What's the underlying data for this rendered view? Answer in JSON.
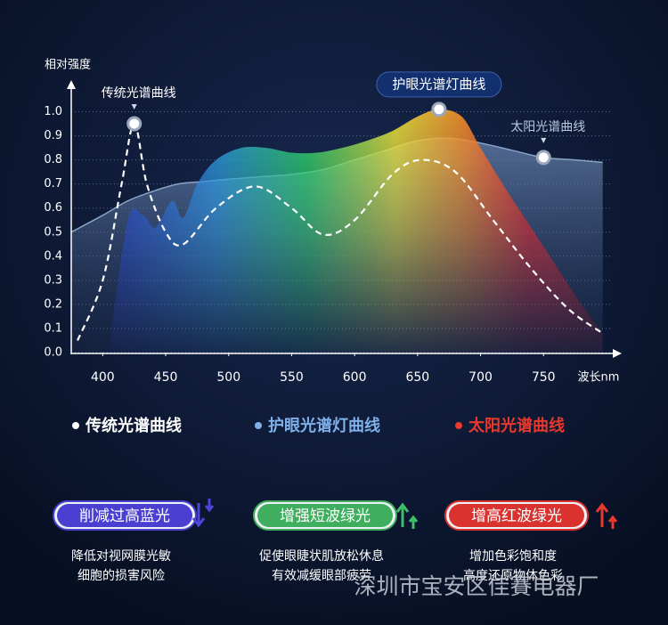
{
  "chart_data": {
    "type": "area",
    "y_label": "相对强度",
    "x_label": "波长nm",
    "xlim": [
      375,
      805
    ],
    "xticks": [
      400,
      450,
      500,
      550,
      600,
      650,
      700,
      750
    ],
    "ylim": [
      0,
      1.05
    ],
    "yticks": [
      {
        "value": 0,
        "label": "0.0"
      },
      0.1,
      0.2,
      0.3,
      0.4,
      0.5,
      0.6,
      0.7,
      0.8,
      0.9,
      {
        "value": 1,
        "label": "1.0"
      }
    ],
    "grid": true,
    "series": [
      {
        "name": "太阳光谱曲线",
        "color": "#e8392f",
        "style": "area",
        "x": [
          375,
          400,
          420,
          440,
          460,
          480,
          500,
          525,
          550,
          575,
          600,
          625,
          650,
          675,
          700,
          725,
          750,
          775,
          797
        ],
        "values": [
          0.5,
          0.57,
          0.63,
          0.67,
          0.7,
          0.71,
          0.72,
          0.73,
          0.74,
          0.76,
          0.8,
          0.84,
          0.88,
          0.89,
          0.87,
          0.84,
          0.81,
          0.8,
          0.79
        ],
        "marker": 16
      },
      {
        "name": "护眼光谱灯曲线",
        "color": "#7fb0ea",
        "style": "rainbow",
        "x": [
          405,
          420,
          432,
          442,
          455,
          464,
          475,
          490,
          510,
          530,
          550,
          570,
          590,
          610,
          630,
          650,
          667,
          685,
          700,
          720,
          740,
          760,
          780,
          797
        ],
        "values": [
          0.02,
          0.55,
          0.57,
          0.52,
          0.63,
          0.56,
          0.7,
          0.8,
          0.85,
          0.85,
          0.83,
          0.83,
          0.85,
          0.88,
          0.92,
          0.98,
          1.01,
          0.98,
          0.85,
          0.68,
          0.52,
          0.36,
          0.2,
          0.08
        ],
        "marker": 16
      },
      {
        "name": "传统光谱曲线",
        "color": "#ffffff",
        "style": "dashed",
        "x": [
          380,
          400,
          415,
          425,
          435,
          450,
          464,
          490,
          521,
          550,
          575,
          600,
          630,
          653,
          680,
          710,
          740,
          770,
          797
        ],
        "values": [
          0.05,
          0.3,
          0.7,
          0.95,
          0.7,
          0.5,
          0.45,
          0.6,
          0.69,
          0.6,
          0.49,
          0.55,
          0.74,
          0.8,
          0.75,
          0.55,
          0.35,
          0.18,
          0.08
        ],
        "marker": 3
      }
    ],
    "annotations": [
      {
        "text": "传统光谱曲线",
        "series": 2
      },
      {
        "text": "护眼光谱灯曲线",
        "series": 1
      },
      {
        "text": "太阳光谱曲线",
        "series": 0
      }
    ]
  },
  "features": [
    {
      "title": "削减过高蓝光",
      "lines": [
        "降低对视网膜光敏",
        "细胞的损害风险"
      ]
    },
    {
      "title": "增强短波绿光",
      "lines": [
        "促使眼睫状肌放松休息",
        "有效减缓眼部疲劳"
      ]
    },
    {
      "title": "增高红波绿光",
      "lines": [
        "增加色彩饱和度",
        "高度还原物体色彩"
      ]
    }
  ],
  "watermark": "深圳市宝安区佳賽电器厂"
}
